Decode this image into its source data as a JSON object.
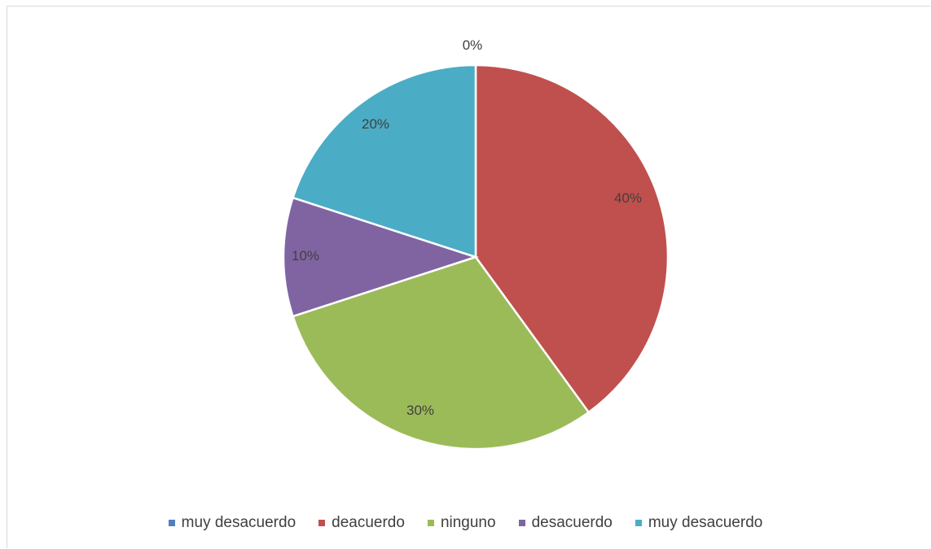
{
  "chart_data": {
    "type": "pie",
    "title": "",
    "slices": [
      {
        "label": "muy desacuerdo",
        "value": 0,
        "display": "0%",
        "color": "#4f81bd"
      },
      {
        "label": "deacuerdo",
        "value": 40,
        "display": "40%",
        "color": "#c0504d"
      },
      {
        "label": "ninguno",
        "value": 30,
        "display": "30%",
        "color": "#9bbb59"
      },
      {
        "label": "desacuerdo",
        "value": 10,
        "display": "10%",
        "color": "#8064a2"
      },
      {
        "label": "muy desacuerdo",
        "value": 20,
        "display": "20%",
        "color": "#4bacc6"
      }
    ],
    "legend_position": "bottom"
  }
}
